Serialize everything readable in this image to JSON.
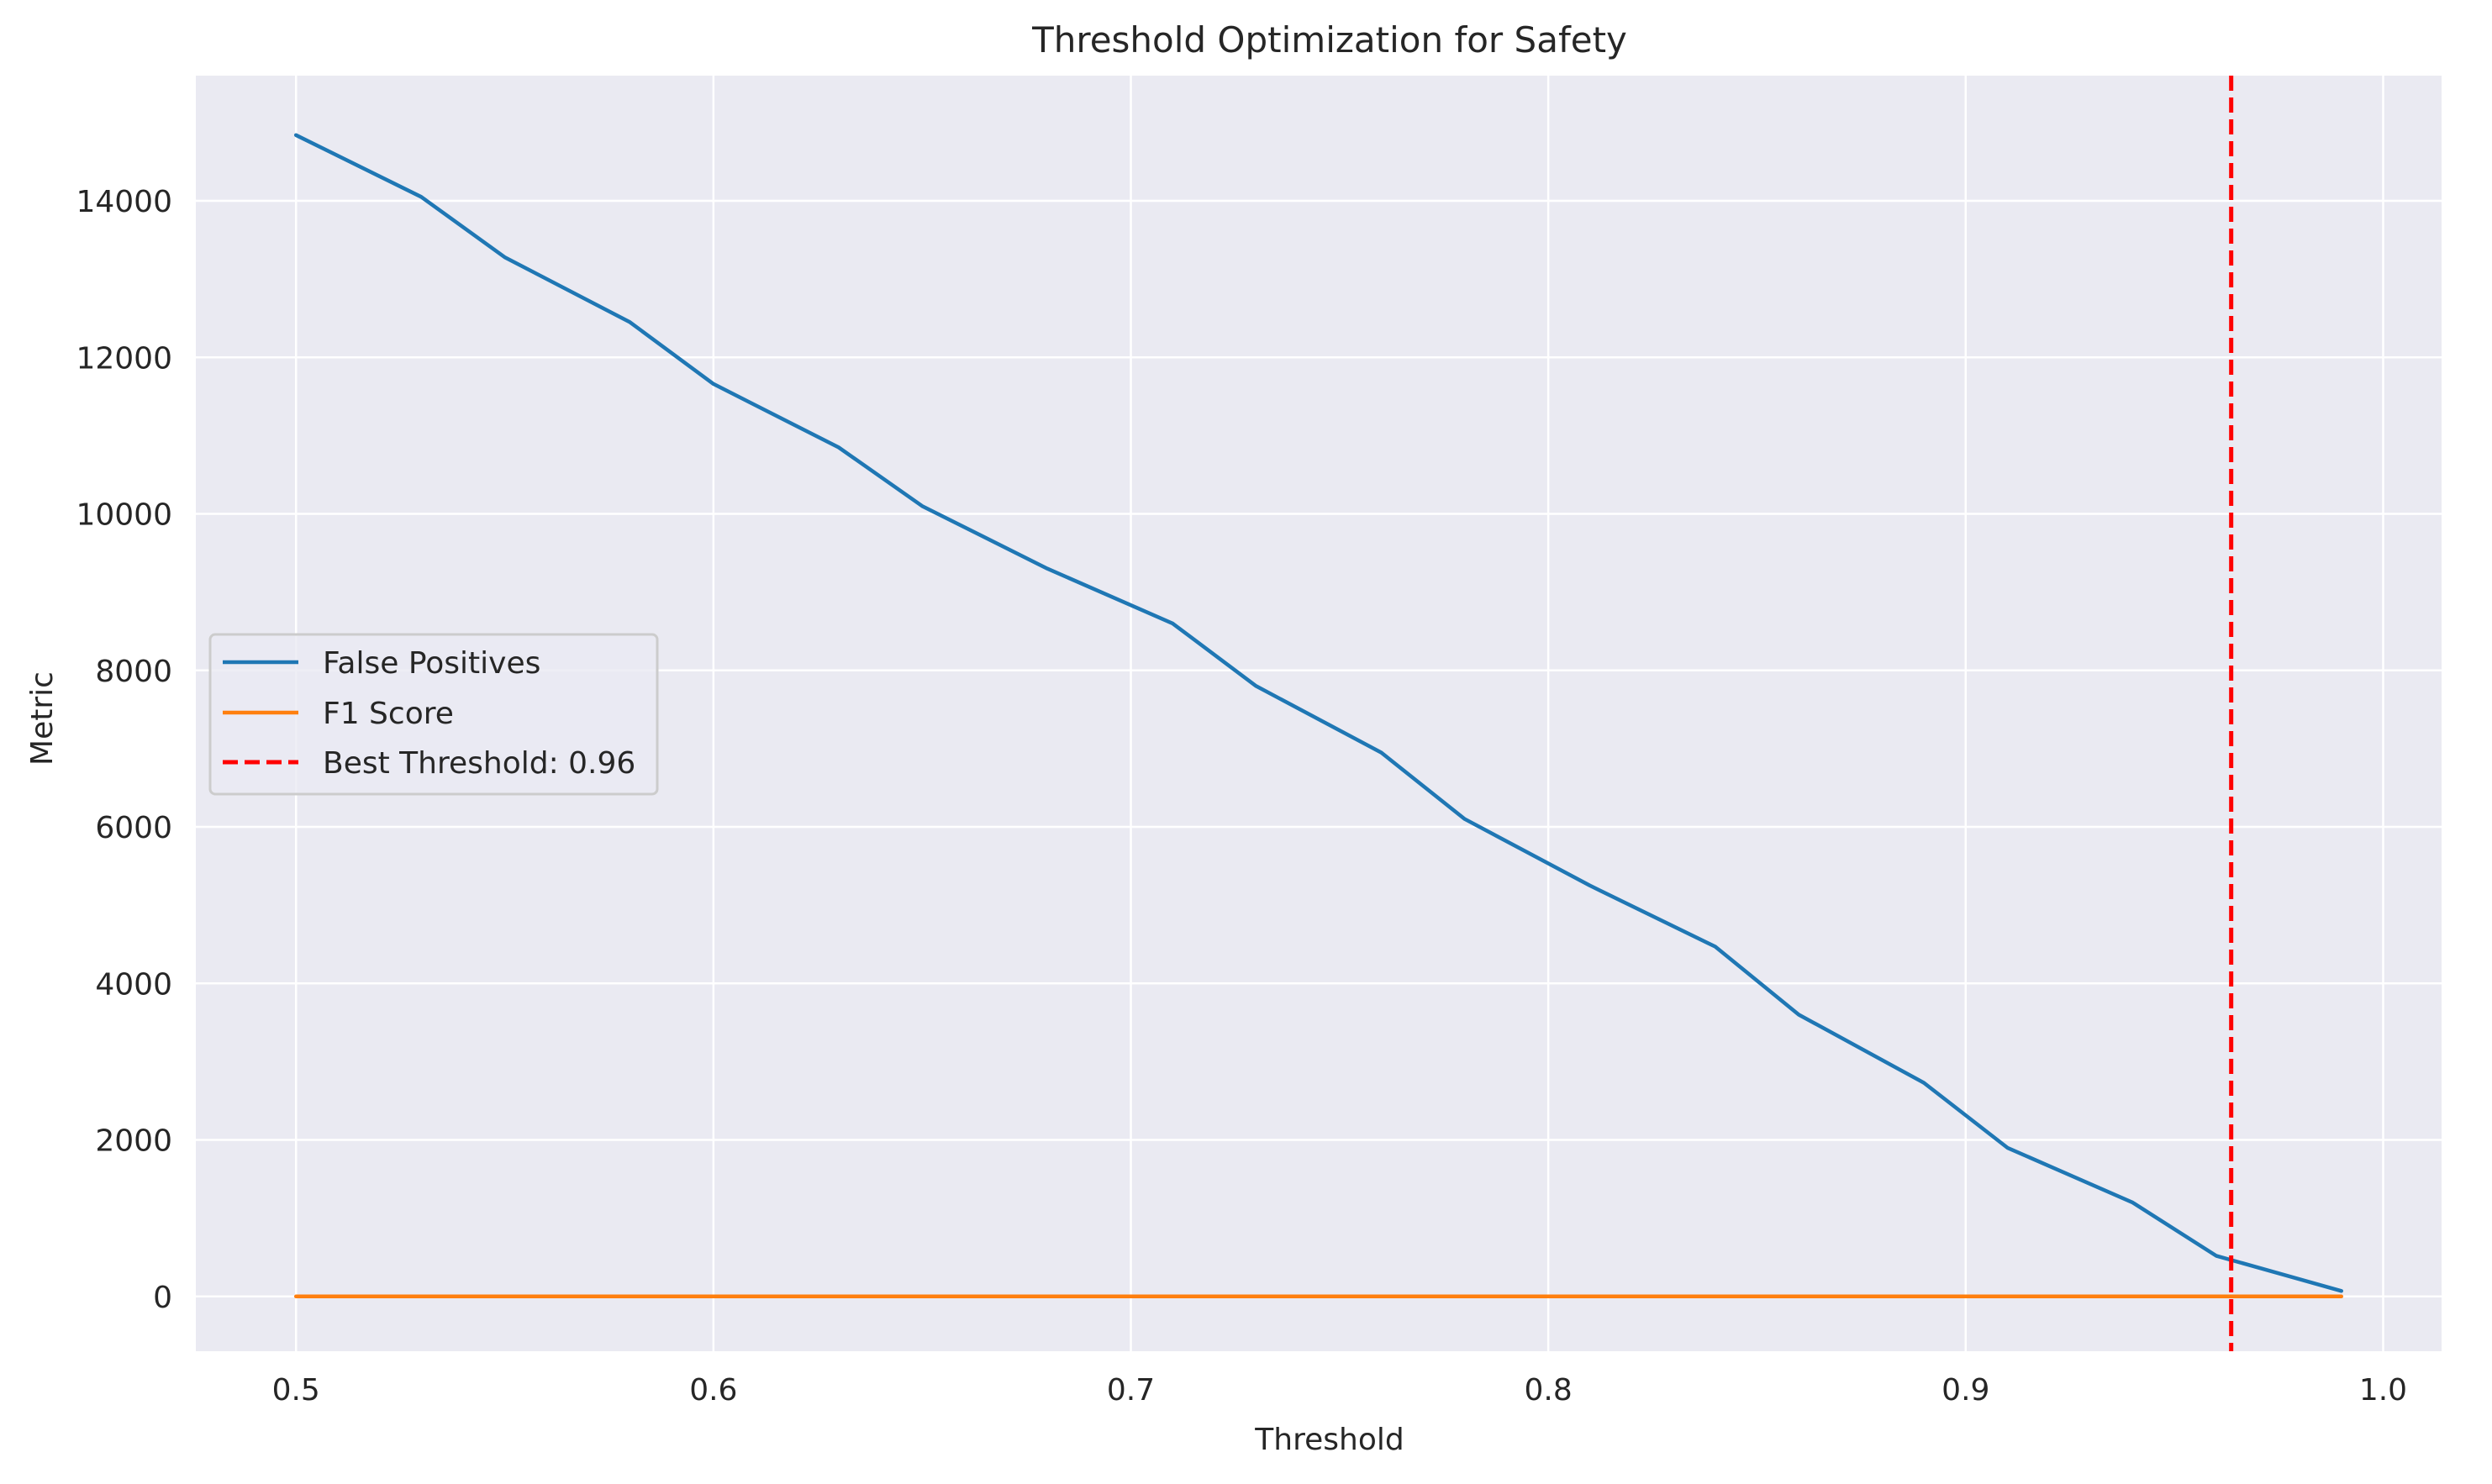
{
  "chart_data": {
    "type": "line",
    "title": "Threshold Optimization for Safety",
    "xlabel": "Threshold",
    "ylabel": "Metric",
    "xlim": [
      0.476,
      1.014
    ],
    "ylim": [
      -700,
      15600
    ],
    "xticks": [
      0.5,
      0.6,
      0.7,
      0.8,
      0.9,
      1.0
    ],
    "xtick_labels": [
      "0.5",
      "0.6",
      "0.7",
      "0.8",
      "0.9",
      "1.0"
    ],
    "yticks": [
      0,
      2000,
      4000,
      6000,
      8000,
      10000,
      12000,
      14000
    ],
    "ytick_labels": [
      "0",
      "2000",
      "4000",
      "6000",
      "8000",
      "10000",
      "12000",
      "14000"
    ],
    "grid": true,
    "legend_position": "center-left",
    "series": [
      {
        "name": "False Positives",
        "color": "#1f77b4",
        "style": "solid",
        "x": [
          0.5,
          0.53,
          0.55,
          0.58,
          0.6,
          0.63,
          0.65,
          0.68,
          0.71,
          0.73,
          0.76,
          0.78,
          0.81,
          0.84,
          0.86,
          0.89,
          0.91,
          0.94,
          0.96,
          0.99
        ],
        "y": [
          14840,
          14050,
          13280,
          12450,
          11660,
          10850,
          10100,
          9300,
          8600,
          7800,
          6950,
          6100,
          5250,
          4470,
          3600,
          2730,
          1900,
          1200,
          520,
          70
        ]
      },
      {
        "name": "F1 Score",
        "color": "#ff7f0e",
        "style": "solid",
        "x": [
          0.5,
          0.53,
          0.55,
          0.58,
          0.6,
          0.63,
          0.65,
          0.68,
          0.71,
          0.73,
          0.76,
          0.78,
          0.81,
          0.84,
          0.86,
          0.89,
          0.91,
          0.94,
          0.96,
          0.99
        ],
        "y": [
          0.5,
          0.5,
          0.5,
          0.5,
          0.5,
          0.5,
          0.5,
          0.5,
          0.5,
          0.5,
          0.5,
          0.5,
          0.5,
          0.5,
          0.5,
          0.5,
          0.5,
          0.5,
          0.5,
          0.5
        ]
      }
    ],
    "vline": {
      "name": "Best Threshold: 0.96",
      "x": 0.9636,
      "color": "#ff0000",
      "style": "dashed"
    },
    "colors": {
      "plot_background": "#eaeaf2",
      "grid": "#ffffff",
      "legend_border": "#cccccc"
    }
  }
}
